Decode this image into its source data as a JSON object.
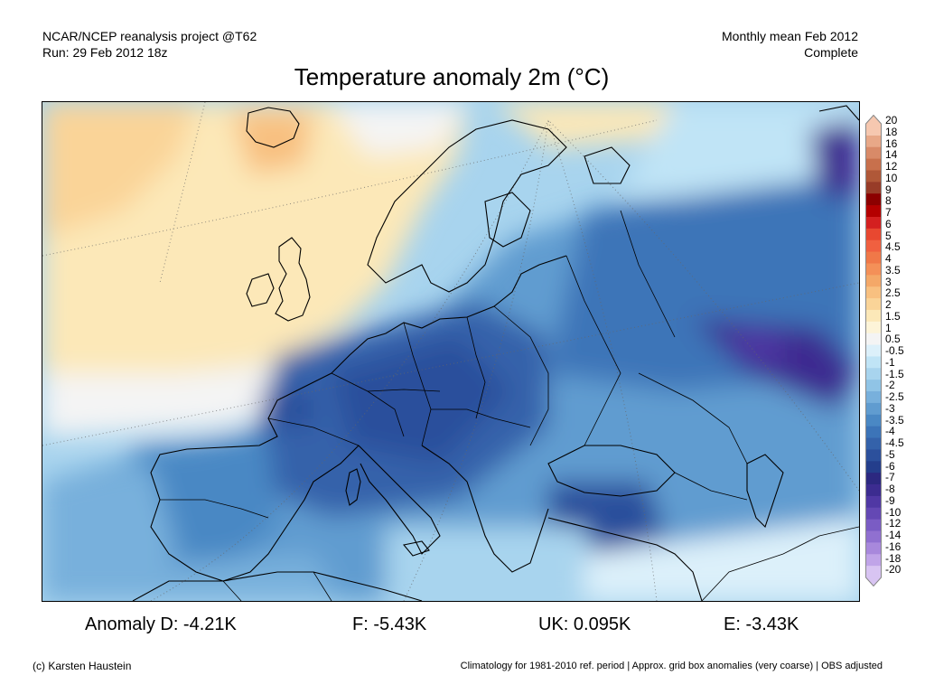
{
  "header": {
    "line1_left": "NCAR/NCEP reanalysis project @T62",
    "line2_left": "Run: 29 Feb 2012 18z",
    "line1_right": "Monthly mean Feb 2012",
    "line2_right": "Complete"
  },
  "title": "Temperature anomaly 2m (°C)",
  "colorbar": {
    "labels": [
      "20",
      "18",
      "16",
      "14",
      "12",
      "10",
      "9",
      "8",
      "7",
      "6",
      "5",
      "4.5",
      "4",
      "3.5",
      "3",
      "2.5",
      "2",
      "1.5",
      "1",
      "0.5",
      "-0.5",
      "-1",
      "-1.5",
      "-2",
      "-2.5",
      "-3",
      "-3.5",
      "-4",
      "-4.5",
      "-5",
      "-6",
      "-7",
      "-8",
      "-9",
      "-10",
      "-12",
      "-14",
      "-16",
      "-18",
      "-20"
    ],
    "colors": [
      "#f6c8b0",
      "#e8a888",
      "#d88a68",
      "#c8704c",
      "#b05838",
      "#983c28",
      "#8c0000",
      "#b40000",
      "#d42020",
      "#e84830",
      "#f06040",
      "#f07848",
      "#f49058",
      "#f4a868",
      "#f8c080",
      "#fad498",
      "#fce8b8",
      "#fdf4d8",
      "#f4f4f4",
      "#dcf0fa",
      "#c0e4f6",
      "#a8d4ee",
      "#90c4e6",
      "#78b0dc",
      "#609cd0",
      "#4a88c4",
      "#3c74b8",
      "#3462aa",
      "#2c509c",
      "#243e8c",
      "#2c2880",
      "#3c2c90",
      "#5038a4",
      "#6448b4",
      "#7a5cc4",
      "#9070d0",
      "#a888dc",
      "#c0a4e8",
      "#d8c4f2"
    ]
  },
  "stats": {
    "germany": "Anomaly D: -4.21K",
    "france": "F: -5.43K",
    "uk": "UK: 0.095K",
    "spain": "E: -3.43K"
  },
  "footer": {
    "left": "(c) Karsten Haustein",
    "right": "Climatology for 1981-2010 ref. period | Approx. grid box anomalies (very coarse) | OBS adjusted"
  }
}
